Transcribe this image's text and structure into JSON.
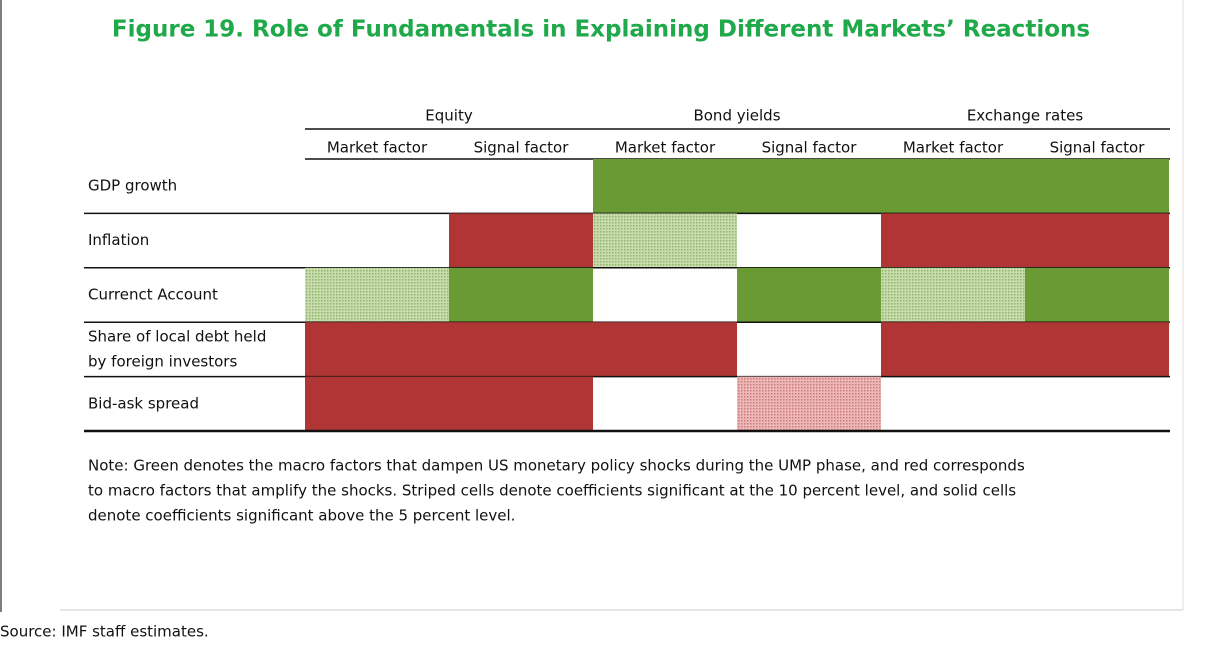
{
  "title": "Figure 19. Role of Fundamentals in Explaining Different Markets’ Reactions",
  "table": {
    "groups": [
      "Equity",
      "Bond yields",
      "Exchange rates"
    ],
    "subcolumns": [
      "Market factor",
      "Signal factor",
      "Market factor",
      "Signal factor",
      "Market factor",
      "Signal factor"
    ],
    "rows": [
      {
        "label": [
          "GDP growth"
        ],
        "cells": [
          "none",
          "none",
          "green-solid",
          "green-solid",
          "green-solid",
          "green-solid"
        ]
      },
      {
        "label": [
          "Inflation"
        ],
        "cells": [
          "none",
          "red-solid",
          "green-striped",
          "none",
          "red-solid",
          "red-solid"
        ]
      },
      {
        "label": [
          "Currenct Account"
        ],
        "cells": [
          "green-striped",
          "green-solid",
          "none",
          "green-solid",
          "green-striped",
          "green-solid"
        ]
      },
      {
        "label": [
          "Share of local debt held",
          "by foreign investors"
        ],
        "cells": [
          "red-solid",
          "red-solid",
          "red-solid",
          "none",
          "red-solid",
          "red-solid"
        ]
      },
      {
        "label": [
          "Bid-ask spread"
        ],
        "cells": [
          "red-solid",
          "red-solid",
          "none",
          "red-striped",
          "none",
          "none"
        ]
      }
    ]
  },
  "note": [
    "Note: Green denotes the macro factors that dampen US monetary policy shocks during the UMP phase, and red corresponds",
    "to macro factors that amplify the shocks. Striped cells denote coefficients significant at the 10 percent level, and solid cells",
    "denote coefficients significant above the 5 percent level."
  ],
  "source": "Source: IMF staff estimates."
}
